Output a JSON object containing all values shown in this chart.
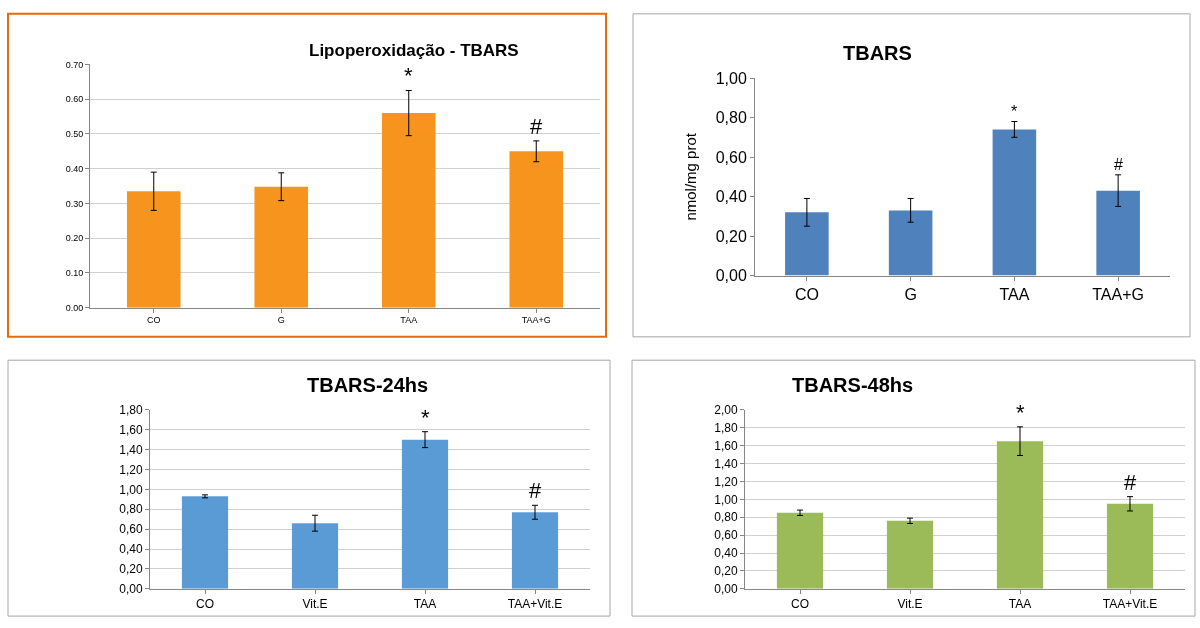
{
  "chart_data": [
    {
      "type": "bar",
      "title": "Lipoperoxidação - TBARS",
      "categories": [
        "CO",
        "G",
        "TAA",
        "TAA+G"
      ],
      "values": [
        0.335,
        0.348,
        0.56,
        0.45
      ],
      "errors": [
        0.055,
        0.04,
        0.065,
        0.03
      ],
      "color": "#f7941d",
      "ylim": [
        0,
        0.7
      ],
      "yticks": [
        {
          "value": 0,
          "label": "0.00"
        },
        {
          "value": 0.1,
          "label": "0.10"
        },
        {
          "value": 0.2,
          "label": "0.20"
        },
        {
          "value": 0.3,
          "label": "0.30"
        },
        {
          "value": 0.4,
          "label": "0.40"
        },
        {
          "value": 0.5,
          "label": "0.50"
        },
        {
          "value": 0.6,
          "label": "0.60"
        },
        {
          "value": 0.7,
          "label": "0.70"
        }
      ],
      "grid": "y",
      "annotations": [
        {
          "text": "*",
          "x": "TAA",
          "y": 0.625
        },
        {
          "text": "#",
          "x": "TAA+G",
          "y": 0.48
        }
      ]
    },
    {
      "type": "bar",
      "title": "TBARS",
      "ylabel": "nmol/mg prot",
      "categories": [
        "CO",
        "G",
        "TAA",
        "TAA+G"
      ],
      "values": [
        0.32,
        0.33,
        0.74,
        0.43
      ],
      "errors": [
        0.07,
        0.06,
        0.04,
        0.08
      ],
      "color": "#4f81bd",
      "ylim": [
        0,
        1
      ],
      "yticks": [
        {
          "value": 0,
          "label": "0,00"
        },
        {
          "value": 0.2,
          "label": "0,20"
        },
        {
          "value": 0.4,
          "label": "0,40"
        },
        {
          "value": 0.6,
          "label": "0,60"
        },
        {
          "value": 0.8,
          "label": "0,80"
        },
        {
          "value": 1,
          "label": "1,00"
        }
      ],
      "grid": false,
      "annotations": [
        {
          "text": "*",
          "x": "TAA",
          "y": 0.78
        },
        {
          "text": "#",
          "x": "TAA+G",
          "y": 0.51
        }
      ]
    },
    {
      "type": "bar",
      "title": "TBARS-24hs",
      "categories": [
        "CO",
        "Vit.E",
        "TAA",
        "TAA+Vit.E"
      ],
      "values": [
        0.93,
        0.66,
        1.5,
        0.77
      ],
      "errors": [
        0.015,
        0.08,
        0.08,
        0.07
      ],
      "color": "#5b9bd5",
      "ylim": [
        0,
        1.8
      ],
      "yticks": [
        {
          "value": 0,
          "label": "0,00"
        },
        {
          "value": 0.2,
          "label": "0,20"
        },
        {
          "value": 0.4,
          "label": "0,40"
        },
        {
          "value": 0.6,
          "label": "0,60"
        },
        {
          "value": 0.8,
          "label": "0,80"
        },
        {
          "value": 1,
          "label": "1,00"
        },
        {
          "value": 1.2,
          "label": "1,20"
        },
        {
          "value": 1.4,
          "label": "1,40"
        },
        {
          "value": 1.6,
          "label": "1,60"
        },
        {
          "value": 1.8,
          "label": "1,80"
        }
      ],
      "grid": "y",
      "annotations": [
        {
          "text": "*",
          "x": "TAA",
          "y": 1.58
        },
        {
          "text": "#",
          "x": "TAA+Vit.E",
          "y": 0.84
        }
      ]
    },
    {
      "type": "bar",
      "title": "TBARS-48hs",
      "categories": [
        "CO",
        "Vit.E",
        "TAA",
        "TAA+Vit.E"
      ],
      "values": [
        0.85,
        0.76,
        1.65,
        0.95
      ],
      "errors": [
        0.03,
        0.03,
        0.16,
        0.08
      ],
      "color": "#9bbb59",
      "ylim": [
        0,
        2
      ],
      "yticks": [
        {
          "value": 0,
          "label": "0,00"
        },
        {
          "value": 0.2,
          "label": "0,20"
        },
        {
          "value": 0.4,
          "label": "0,40"
        },
        {
          "value": 0.6,
          "label": "0,60"
        },
        {
          "value": 0.8,
          "label": "0,80"
        },
        {
          "value": 1,
          "label": "1,00"
        },
        {
          "value": 1.2,
          "label": "1,20"
        },
        {
          "value": 1.4,
          "label": "1,40"
        },
        {
          "value": 1.6,
          "label": "1,60"
        },
        {
          "value": 1.8,
          "label": "1,80"
        },
        {
          "value": 2,
          "label": "2,00"
        }
      ],
      "grid": "y",
      "annotations": [
        {
          "text": "*",
          "x": "TAA",
          "y": 1.81
        },
        {
          "text": "#",
          "x": "TAA+Vit.E",
          "y": 1.03
        }
      ]
    }
  ]
}
